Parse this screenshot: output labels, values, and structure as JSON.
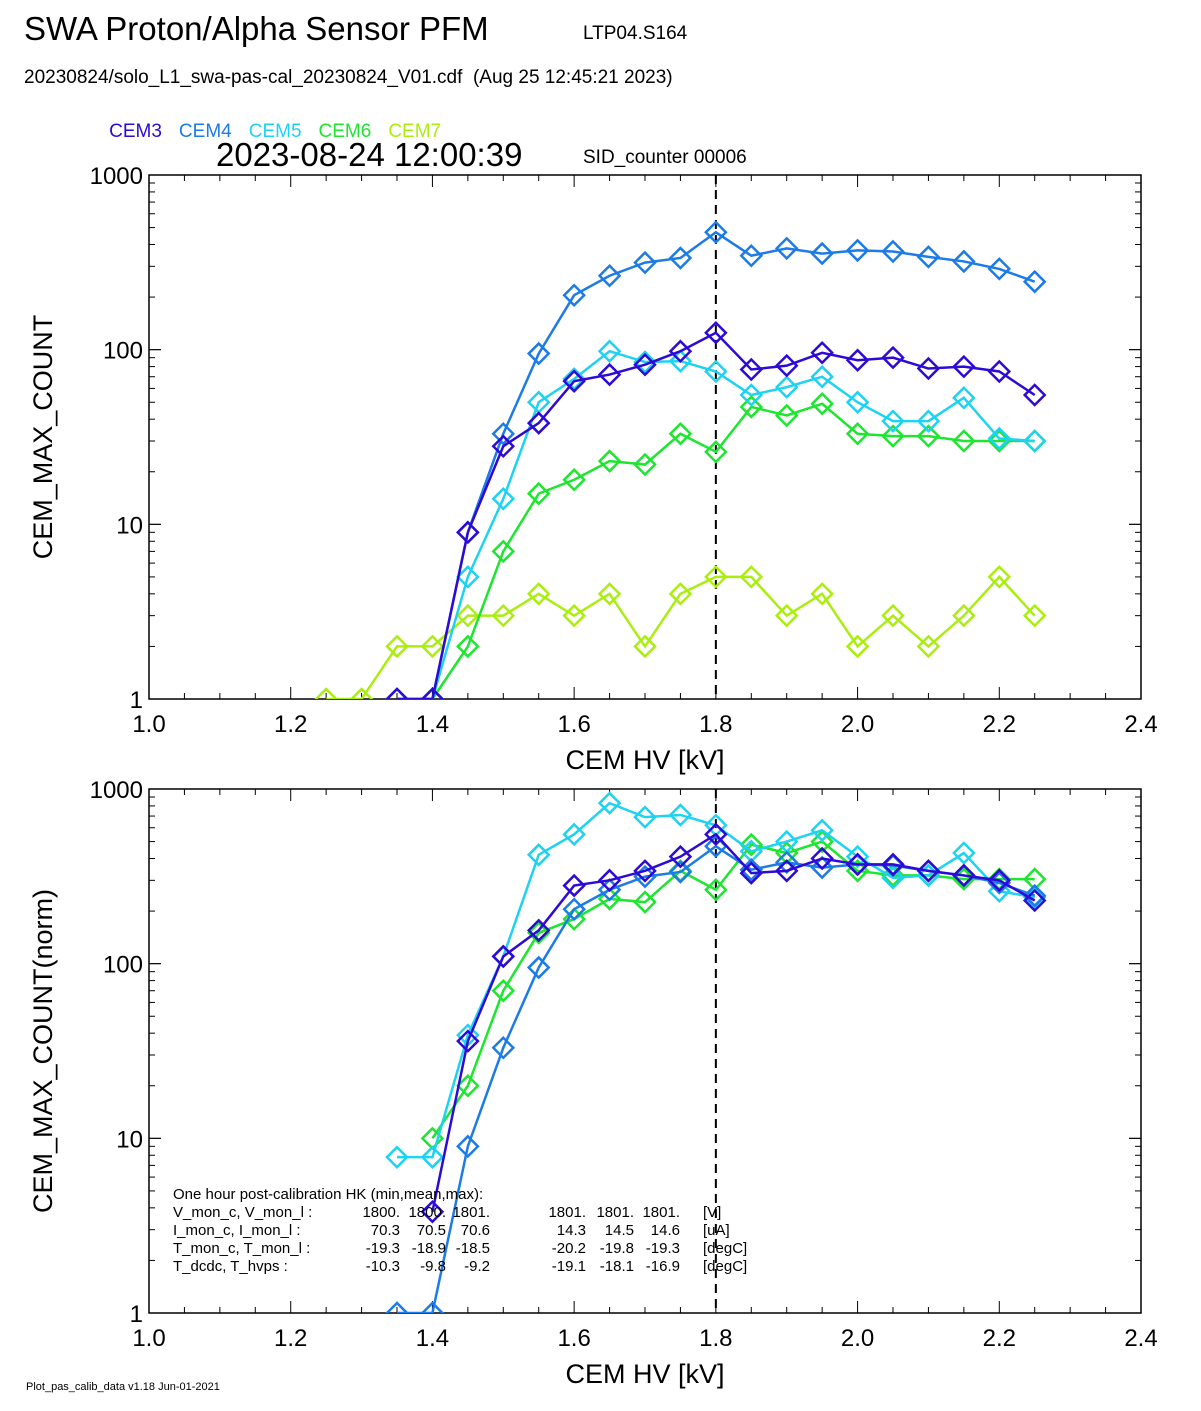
{
  "header": {
    "title": "SWA Proton/Alpha Sensor PFM",
    "sensor_id": "LTP04.S164",
    "file_info": "20230824/solo_L1_swa-pas-cal_20230824_V01.cdf  (Aug 25 12:45:21 2023)",
    "timestamp": "2023-08-24 12:00:39",
    "sid_counter": "SID_counter 00006"
  },
  "legend": [
    {
      "label": "CEM3",
      "color": "#2d0ad6"
    },
    {
      "label": "CEM4",
      "color": "#1c7be6"
    },
    {
      "label": "CEM5",
      "color": "#1ed2f2"
    },
    {
      "label": "CEM6",
      "color": "#1ce62e"
    },
    {
      "label": "CEM7",
      "color": "#aaee10"
    }
  ],
  "chart_data": [
    {
      "type": "line",
      "xlabel": "CEM HV [kV]",
      "ylabel": "CEM_MAX_COUNT",
      "xlim": [
        1.0,
        2.4
      ],
      "ylim": [
        1,
        1000
      ],
      "yscale": "log",
      "x_ticks": [
        "1.0",
        "1.2",
        "1.4",
        "1.6",
        "1.8",
        "2.0",
        "2.2",
        "2.4"
      ],
      "y_ticks": [
        "1",
        "10",
        "100",
        "1000"
      ],
      "marker": "diamond",
      "vline_dashed": 1.8,
      "series": [
        {
          "name": "CEM3",
          "x": [
            1.35,
            1.4,
            1.45,
            1.5,
            1.55,
            1.6,
            1.65,
            1.7,
            1.75,
            1.8,
            1.85,
            1.9,
            1.95,
            2.0,
            2.05,
            2.1,
            2.15,
            2.2,
            2.25
          ],
          "values": [
            1,
            1,
            9,
            28,
            38,
            66,
            72,
            82,
            98,
            125,
            77,
            81,
            96,
            87,
            90,
            78,
            80,
            75,
            55
          ]
        },
        {
          "name": "CEM4",
          "x": [
            1.35,
            1.4,
            1.45,
            1.5,
            1.55,
            1.6,
            1.65,
            1.7,
            1.75,
            1.8,
            1.85,
            1.9,
            1.95,
            2.0,
            2.05,
            2.1,
            2.15,
            2.2,
            2.25
          ],
          "values": [
            1,
            1,
            9,
            33,
            95,
            205,
            265,
            315,
            335,
            470,
            345,
            380,
            355,
            370,
            365,
            340,
            320,
            290,
            245
          ]
        },
        {
          "name": "CEM5",
          "x": [
            1.35,
            1.4,
            1.45,
            1.5,
            1.55,
            1.6,
            1.65,
            1.7,
            1.75,
            1.8,
            1.85,
            1.9,
            1.95,
            2.0,
            2.05,
            2.1,
            2.15,
            2.2,
            2.25
          ],
          "values": [
            1,
            1,
            5,
            14,
            50,
            68,
            98,
            85,
            86,
            75,
            55,
            61,
            70,
            50,
            39,
            39,
            53,
            31,
            30
          ]
        },
        {
          "name": "CEM6",
          "x": [
            1.4,
            1.45,
            1.5,
            1.55,
            1.6,
            1.65,
            1.7,
            1.75,
            1.8,
            1.85,
            1.9,
            1.95,
            2.0,
            2.05,
            2.1,
            2.15,
            2.2,
            2.25
          ],
          "values": [
            1,
            2,
            7,
            15,
            18,
            23,
            22,
            33,
            26,
            47,
            42,
            49,
            33,
            32,
            32,
            30,
            30,
            30
          ]
        },
        {
          "name": "CEM7",
          "x": [
            1.25,
            1.3,
            1.35,
            1.4,
            1.45,
            1.5,
            1.55,
            1.6,
            1.65,
            1.7,
            1.75,
            1.8,
            1.85,
            1.9,
            1.95,
            2.0,
            2.05,
            2.1,
            2.15,
            2.2,
            2.25
          ],
          "values": [
            1,
            1,
            2,
            2,
            3,
            3,
            4,
            3,
            4,
            2,
            4,
            5,
            5,
            3,
            4,
            2,
            3,
            2,
            3,
            5,
            3
          ]
        }
      ]
    },
    {
      "type": "line",
      "xlabel": "CEM HV [kV]",
      "ylabel": "CEM_MAX_COUNT(norm)",
      "xlim": [
        1.0,
        2.4
      ],
      "ylim": [
        1,
        1000
      ],
      "yscale": "log",
      "x_ticks": [
        "1.0",
        "1.2",
        "1.4",
        "1.6",
        "1.8",
        "2.0",
        "2.2",
        "2.4"
      ],
      "y_ticks": [
        "1",
        "10",
        "100",
        "1000"
      ],
      "marker": "diamond",
      "vline_dashed": 1.8,
      "series": [
        {
          "name": "CEM3",
          "x": [
            1.4,
            1.45,
            1.5,
            1.55,
            1.6,
            1.65,
            1.7,
            1.75,
            1.8,
            1.85,
            1.9,
            1.95,
            2.0,
            2.05,
            2.1,
            2.15,
            2.2,
            2.25
          ],
          "values": [
            3.8,
            36,
            110,
            155,
            280,
            300,
            340,
            410,
            550,
            330,
            340,
            400,
            370,
            370,
            340,
            320,
            300,
            230
          ]
        },
        {
          "name": "CEM4",
          "x": [
            1.35,
            1.4,
            1.45,
            1.5,
            1.55,
            1.6,
            1.65,
            1.7,
            1.75,
            1.8,
            1.85,
            1.9,
            1.95,
            2.0,
            2.05,
            2.1,
            2.15,
            2.2,
            2.25
          ],
          "values": [
            1,
            1,
            9,
            33,
            95,
            205,
            265,
            315,
            335,
            470,
            345,
            380,
            355,
            370,
            365,
            340,
            320,
            290,
            245
          ]
        },
        {
          "name": "CEM5",
          "x": [
            1.35,
            1.4,
            1.45,
            1.5,
            1.55,
            1.6,
            1.65,
            1.7,
            1.75,
            1.8,
            1.85,
            1.9,
            1.95,
            2.0,
            2.05,
            2.1,
            2.15,
            2.2,
            2.25
          ],
          "values": [
            7.8,
            7.8,
            39,
            110,
            420,
            550,
            830,
            690,
            710,
            620,
            440,
            500,
            580,
            410,
            310,
            320,
            430,
            260,
            240
          ]
        },
        {
          "name": "CEM6",
          "x": [
            1.4,
            1.45,
            1.5,
            1.55,
            1.6,
            1.65,
            1.7,
            1.75,
            1.8,
            1.85,
            1.9,
            1.95,
            2.0,
            2.05,
            2.1,
            2.15,
            2.2,
            2.25
          ],
          "values": [
            10,
            20,
            70,
            150,
            180,
            235,
            225,
            340,
            265,
            480,
            430,
            500,
            340,
            320,
            320,
            305,
            305,
            305
          ]
        },
        {
          "name": "CEM7",
          "x": [],
          "values": []
        }
      ]
    }
  ],
  "hk_box": {
    "title": "One hour post-calibration HK (min,mean,max):",
    "rows": [
      {
        "label": "V_mon_c, V_mon_l :",
        "c": [
          "1800.",
          "1800.",
          "1801."
        ],
        "l": [
          "1801.",
          "1801.",
          "1801."
        ],
        "unit": "[V]"
      },
      {
        "label": "I_mon_c,  I_mon_l :",
        "c": [
          "70.3",
          "70.5",
          "70.6"
        ],
        "l": [
          "14.3",
          "14.5",
          "14.6"
        ],
        "unit": "[uA]"
      },
      {
        "label": "T_mon_c, T_mon_l :",
        "c": [
          "-19.3",
          "-18.9",
          "-18.5"
        ],
        "l": [
          "-20.2",
          "-19.8",
          "-19.3"
        ],
        "unit": "[degC]"
      },
      {
        "label": "T_dcdc,    T_hvps :",
        "c": [
          "-10.3",
          "-9.8",
          "-9.2"
        ],
        "l": [
          "-19.1",
          "-18.1",
          "-16.9"
        ],
        "unit": "[degC]"
      }
    ]
  },
  "footer": "Plot_pas_calib_data v1.18 Jun-01-2021"
}
